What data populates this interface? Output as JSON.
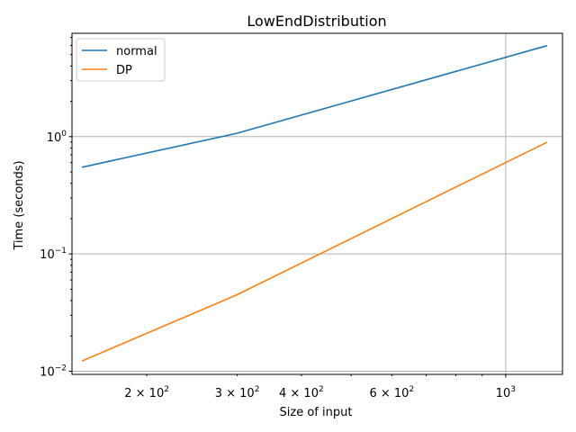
{
  "chart_data": {
    "type": "line",
    "title": "LowEndDistribution",
    "xlabel": "Size of input",
    "ylabel": "Time (seconds)",
    "xscale": "log",
    "yscale": "log",
    "xlim": [
      143,
      1290
    ],
    "ylim": [
      0.0094,
      7.6
    ],
    "grid": "major",
    "legend_position": "top-left",
    "x": [
      150,
      300,
      1200
    ],
    "series": [
      {
        "name": "normal",
        "color": "#1f77b4",
        "values": [
          0.55,
          1.07,
          5.95
        ]
      },
      {
        "name": "DP",
        "color": "#ff7f0e",
        "values": [
          0.0123,
          0.045,
          0.89
        ]
      }
    ],
    "xticks": [
      {
        "value": 200,
        "base": "2 × 10",
        "exp": "2"
      },
      {
        "value": 300,
        "base": "3 × 10",
        "exp": "2"
      },
      {
        "value": 400,
        "base": "4 × 10",
        "exp": "2"
      },
      {
        "value": 600,
        "base": "6 × 10",
        "exp": "2"
      },
      {
        "value": 1000,
        "base": "10",
        "exp": "3"
      }
    ],
    "yticks": [
      {
        "value": 0.01,
        "base": "10",
        "exp": "−2"
      },
      {
        "value": 0.1,
        "base": "10",
        "exp": "−1"
      },
      {
        "value": 1,
        "base": "10",
        "exp": "0"
      }
    ]
  }
}
